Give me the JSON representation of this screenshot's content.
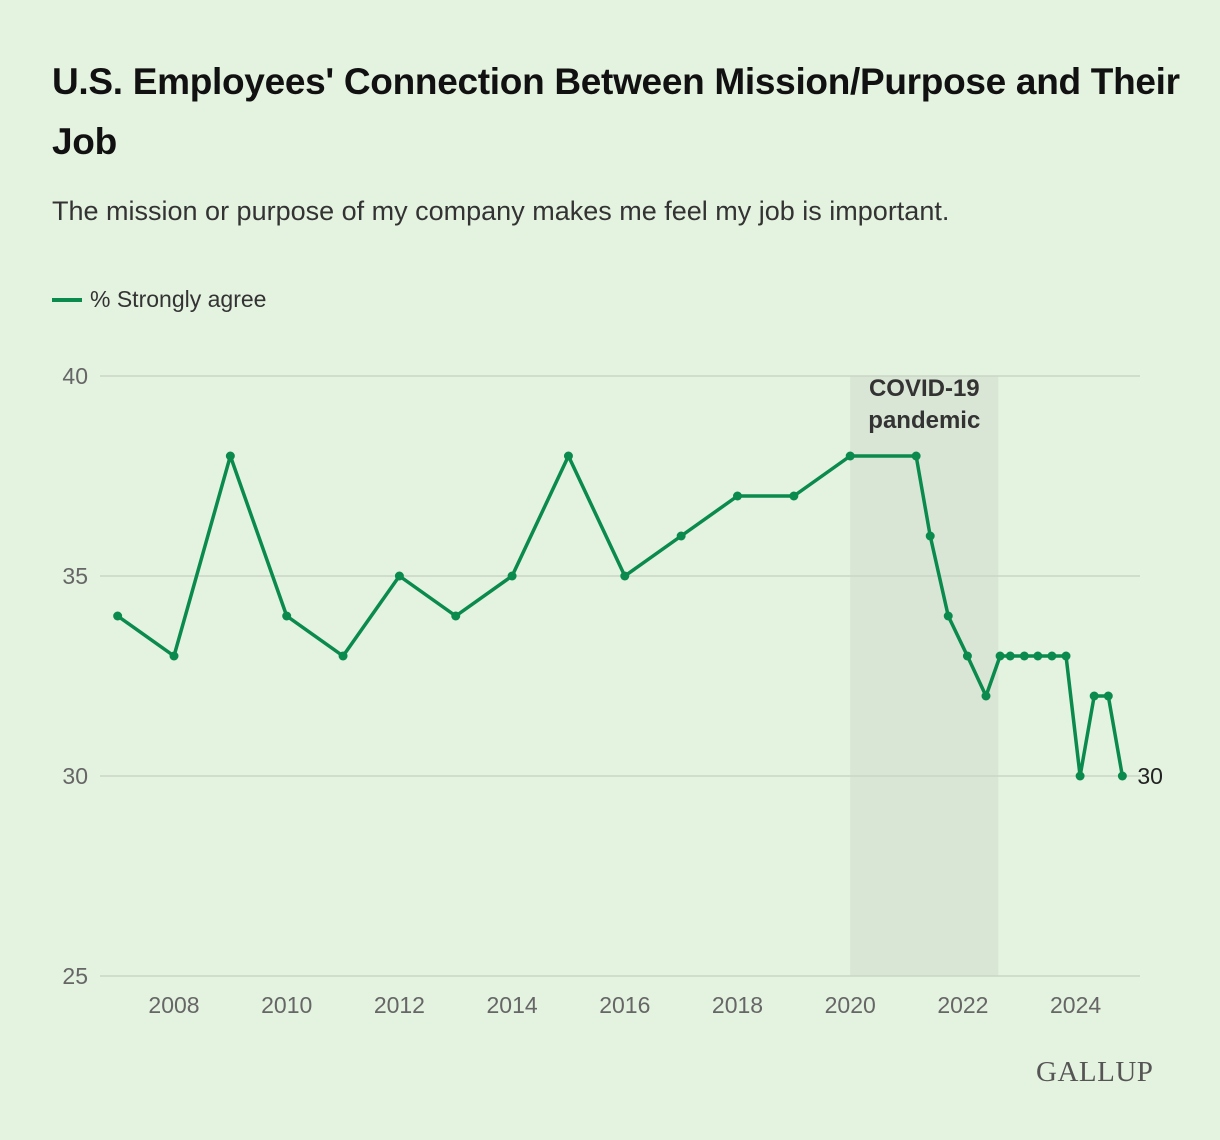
{
  "title": "U.S. Employees' Connection Between Mission/Purpose and Their Job",
  "subtitle": "The mission or purpose of my company makes me feel my job is important.",
  "logo": "GALLUP",
  "chart_data": {
    "type": "line",
    "title": "U.S. Employees' Connection Between Mission/Purpose and Their Job",
    "subtitle": "The mission or purpose of my company makes me feel my job is important.",
    "xlabel": "",
    "ylabel": "",
    "xlim": [
      2006.9,
      2025.1
    ],
    "ylim": [
      25,
      40
    ],
    "yticks": [
      25,
      30,
      35,
      40
    ],
    "xticks": [
      2008,
      2010,
      2012,
      2014,
      2016,
      2018,
      2020,
      2022,
      2024
    ],
    "grid": "horizontal",
    "legend": "top-left",
    "color": "#0a8a4c",
    "shaded_region": {
      "label_line1": "COVID-19",
      "label_line2": "pandemic",
      "start": 2020,
      "end": 2022.63
    },
    "end_label": "30",
    "series": [
      {
        "name": "% Strongly agree",
        "x": [
          2007,
          2008,
          2009,
          2010,
          2011,
          2012,
          2013,
          2014,
          2015,
          2016,
          2017,
          2018,
          2019,
          2020,
          2021.17,
          2021.42,
          2021.74,
          2022.08,
          2022.41,
          2022.66,
          2022.84,
          2023.09,
          2023.33,
          2023.58,
          2023.83,
          2024.08,
          2024.33,
          2024.58,
          2024.83
        ],
        "y": [
          34,
          33,
          38,
          34,
          33,
          35,
          34,
          35,
          38,
          35,
          36,
          37,
          37,
          38,
          38,
          36,
          34,
          33,
          32,
          33,
          33,
          33,
          33,
          33,
          33,
          30,
          32,
          32,
          30
        ]
      }
    ]
  }
}
